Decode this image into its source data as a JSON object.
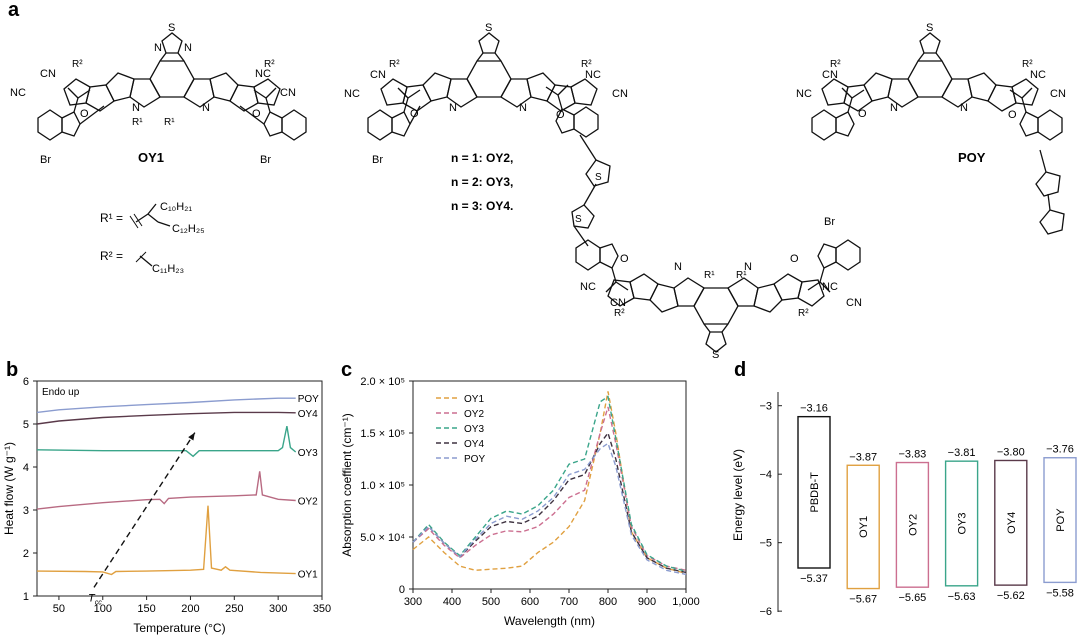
{
  "panel_a": {
    "letter": "a",
    "oy1_label": "OY1",
    "poy_label": "POY",
    "n_labels": [
      "n = 1: OY2,",
      "n = 2: OY3,",
      "n = 3: OY4."
    ],
    "r1_label": "R¹ =",
    "r2_label": "R² =",
    "r1_chain_a": "C₁₀H₂₁",
    "r1_chain_b": "C₁₂H₂₅",
    "r2_chain": "C₁₁H₂₃",
    "atom_labels": {
      "S": "S",
      "N": "N",
      "NC": "NC",
      "CN": "CN",
      "O": "O",
      "Br": "Br",
      "R1": "R¹",
      "R2": "R²",
      "N1": "N"
    }
  },
  "panel_b": {
    "letter": "b",
    "chart_data": {
      "type": "line",
      "xlabel": "Temperature (°C)",
      "ylabel": "Heat flow (W g⁻¹)",
      "xlim": [
        25,
        350
      ],
      "ylim": [
        1,
        6
      ],
      "xticks": [
        50,
        100,
        150,
        200,
        250,
        300,
        350
      ],
      "yticks": [
        1,
        2,
        3,
        4,
        5,
        6
      ],
      "annotation": "Endo up",
      "tcc_label": "T",
      "tcc_sub": "cc",
      "series": [
        {
          "name": "POY",
          "color": "#8b9ccf",
          "points": [
            [
              25,
              5.27
            ],
            [
              50,
              5.33
            ],
            [
              100,
              5.4
            ],
            [
              150,
              5.45
            ],
            [
              200,
              5.5
            ],
            [
              250,
              5.56
            ],
            [
              300,
              5.6
            ],
            [
              320,
              5.6
            ]
          ]
        },
        {
          "name": "OY4",
          "color": "#5a3a4a",
          "points": [
            [
              25,
              5.0
            ],
            [
              50,
              5.07
            ],
            [
              100,
              5.15
            ],
            [
              150,
              5.2
            ],
            [
              200,
              5.24
            ],
            [
              250,
              5.27
            ],
            [
              300,
              5.27
            ],
            [
              320,
              5.26
            ]
          ]
        },
        {
          "name": "OY3",
          "color": "#3aa58a",
          "points": [
            [
              25,
              4.4
            ],
            [
              100,
              4.38
            ],
            [
              150,
              4.38
            ],
            [
              195,
              4.38
            ],
            [
              203,
              4.25
            ],
            [
              210,
              4.38
            ],
            [
              250,
              4.38
            ],
            [
              300,
              4.38
            ],
            [
              305,
              4.45
            ],
            [
              310,
              4.95
            ],
            [
              314,
              4.45
            ],
            [
              320,
              4.35
            ]
          ]
        },
        {
          "name": "OY2",
          "color": "#b86a82",
          "points": [
            [
              25,
              3.02
            ],
            [
              50,
              3.08
            ],
            [
              100,
              3.17
            ],
            [
              150,
              3.24
            ],
            [
              165,
              3.25
            ],
            [
              170,
              3.15
            ],
            [
              175,
              3.27
            ],
            [
              200,
              3.3
            ],
            [
              250,
              3.33
            ],
            [
              275,
              3.35
            ],
            [
              279,
              3.9
            ],
            [
              282,
              3.35
            ],
            [
              300,
              3.25
            ],
            [
              320,
              3.22
            ]
          ]
        },
        {
          "name": "OY1",
          "color": "#e0a040",
          "points": [
            [
              25,
              1.58
            ],
            [
              80,
              1.57
            ],
            [
              100,
              1.56
            ],
            [
              110,
              1.5
            ],
            [
              115,
              1.57
            ],
            [
              150,
              1.58
            ],
            [
              200,
              1.6
            ],
            [
              215,
              1.62
            ],
            [
              220,
              3.1
            ],
            [
              224,
              1.65
            ],
            [
              235,
              1.6
            ],
            [
              240,
              1.68
            ],
            [
              245,
              1.6
            ],
            [
              280,
              1.55
            ],
            [
              320,
              1.52
            ]
          ]
        }
      ],
      "arrow": {
        "from": [
          90,
          1.2
        ],
        "to": [
          205,
          4.8
        ]
      }
    }
  },
  "panel_c": {
    "letter": "c",
    "chart_data": {
      "type": "line",
      "xlabel": "Wavelength (nm)",
      "ylabel": "Absorption coeffient (cm⁻¹)",
      "xlim": [
        300,
        1000
      ],
      "ylim": [
        0,
        200000
      ],
      "xticks": [
        "300",
        "400",
        "500",
        "600",
        "700",
        "800",
        "900",
        "1,000"
      ],
      "xtick_values": [
        300,
        400,
        500,
        600,
        700,
        800,
        900,
        1000
      ],
      "ytick_labels": [
        "0",
        "5.0 × 10⁴",
        "1.0 × 10⁵",
        "1.5 × 10⁵",
        "2.0 × 10⁵"
      ],
      "ytick_values": [
        0,
        50000,
        100000,
        150000,
        200000
      ],
      "series": [
        {
          "name": "OY1",
          "color": "#e0a040",
          "points": [
            [
              300,
              38000
            ],
            [
              340,
              50000
            ],
            [
              380,
              35000
            ],
            [
              420,
              22000
            ],
            [
              460,
              18000
            ],
            [
              500,
              19000
            ],
            [
              540,
              20000
            ],
            [
              580,
              22000
            ],
            [
              620,
              35000
            ],
            [
              660,
              45000
            ],
            [
              700,
              60000
            ],
            [
              740,
              85000
            ],
            [
              780,
              150000
            ],
            [
              800,
              190000
            ],
            [
              820,
              150000
            ],
            [
              860,
              55000
            ],
            [
              900,
              30000
            ],
            [
              950,
              20000
            ],
            [
              1000,
              15000
            ]
          ]
        },
        {
          "name": "OY2",
          "color": "#cc6f90",
          "points": [
            [
              300,
              45000
            ],
            [
              340,
              58000
            ],
            [
              380,
              42000
            ],
            [
              420,
              30000
            ],
            [
              460,
              42000
            ],
            [
              500,
              52000
            ],
            [
              540,
              56000
            ],
            [
              580,
              55000
            ],
            [
              620,
              60000
            ],
            [
              660,
              72000
            ],
            [
              700,
              88000
            ],
            [
              740,
              95000
            ],
            [
              780,
              150000
            ],
            [
              800,
              175000
            ],
            [
              820,
              140000
            ],
            [
              860,
              60000
            ],
            [
              900,
              32000
            ],
            [
              950,
              22000
            ],
            [
              1000,
              18000
            ]
          ]
        },
        {
          "name": "OY3",
          "color": "#3aa58a",
          "points": [
            [
              300,
              45000
            ],
            [
              340,
              62000
            ],
            [
              380,
              45000
            ],
            [
              420,
              32000
            ],
            [
              460,
              50000
            ],
            [
              500,
              68000
            ],
            [
              540,
              75000
            ],
            [
              580,
              72000
            ],
            [
              620,
              80000
            ],
            [
              660,
              95000
            ],
            [
              700,
              120000
            ],
            [
              740,
              125000
            ],
            [
              780,
              180000
            ],
            [
              800,
              185000
            ],
            [
              820,
              145000
            ],
            [
              860,
              62000
            ],
            [
              900,
              33000
            ],
            [
              950,
              22000
            ],
            [
              1000,
              17000
            ]
          ]
        },
        {
          "name": "OY4",
          "color": "#3e3240",
          "points": [
            [
              300,
              45000
            ],
            [
              340,
              60000
            ],
            [
              380,
              44000
            ],
            [
              420,
              31000
            ],
            [
              460,
              46000
            ],
            [
              500,
              60000
            ],
            [
              540,
              65000
            ],
            [
              580,
              63000
            ],
            [
              620,
              70000
            ],
            [
              660,
              85000
            ],
            [
              700,
              105000
            ],
            [
              740,
              110000
            ],
            [
              780,
              140000
            ],
            [
              800,
              150000
            ],
            [
              820,
              125000
            ],
            [
              860,
              55000
            ],
            [
              900,
              30000
            ],
            [
              950,
              20000
            ],
            [
              1000,
              16000
            ]
          ]
        },
        {
          "name": "POY",
          "color": "#8b9ccf",
          "points": [
            [
              300,
              45000
            ],
            [
              340,
              60000
            ],
            [
              380,
              44000
            ],
            [
              420,
              31000
            ],
            [
              460,
              48000
            ],
            [
              500,
              63000
            ],
            [
              540,
              70000
            ],
            [
              580,
              67000
            ],
            [
              620,
              75000
            ],
            [
              660,
              88000
            ],
            [
              700,
              110000
            ],
            [
              740,
              115000
            ],
            [
              780,
              135000
            ],
            [
              800,
              140000
            ],
            [
              820,
              118000
            ],
            [
              860,
              52000
            ],
            [
              900,
              28000
            ],
            [
              950,
              18000
            ],
            [
              1000,
              14000
            ]
          ]
        }
      ]
    }
  },
  "panel_d": {
    "letter": "d",
    "chart_data": {
      "type": "bar",
      "ylabel": "Energy level (eV)",
      "ylim": [
        -6.1,
        -2.8
      ],
      "yticks": [
        -3,
        -4,
        -5,
        -6
      ],
      "ytick_labels": [
        "−3",
        "−4",
        "−5",
        "−6"
      ],
      "categories": [
        "PBDB-T",
        "OY1",
        "OY2",
        "OY3",
        "OY4",
        "POY"
      ],
      "lumo": [
        -3.16,
        -3.87,
        -3.83,
        -3.81,
        -3.8,
        -3.76
      ],
      "homo": [
        -5.37,
        -5.67,
        -5.65,
        -5.63,
        -5.62,
        -5.58
      ],
      "lumo_labels": [
        "−3.16",
        "−3.87",
        "−3.83",
        "−3.81",
        "−3.80",
        "−3.76"
      ],
      "homo_labels": [
        "−5.37",
        "−5.67",
        "−5.65",
        "−5.63",
        "−5.62",
        "−5.58"
      ],
      "colors": [
        "#111111",
        "#e0a040",
        "#cc6f90",
        "#3aa58a",
        "#5a3a4a",
        "#8b9ccf"
      ]
    }
  }
}
